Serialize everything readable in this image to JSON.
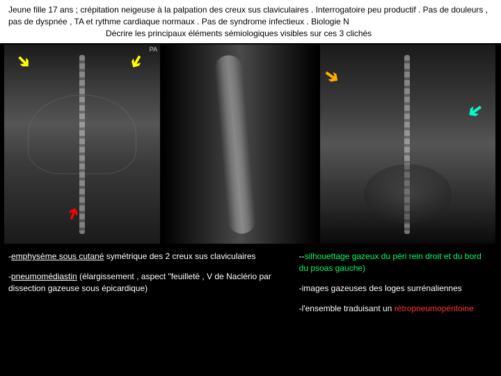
{
  "header": {
    "line1": "Jeune fille 17 ans ; crépitation neigeuse à la palpation des creux sus claviculaires . Interrogatoire peu productif . Pas de douleurs , pas de dyspnée , TA et rythme cardiaque normaux . Pas de syndrome infectieux . Biologie N",
    "line2": "Décrire les principaux éléments sémiologiques visibles sur ces 3 clichés"
  },
  "pa_label": "PA",
  "findings": {
    "left1_prefix": "-",
    "left1_underlined": "emphysème sous cutané",
    "left1_rest": " symétrique des 2 creux sus claviculaires",
    "left2_prefix": "-",
    "left2_underlined": "pneumomédiastin",
    "left2_rest": " (élargissement , aspect \"feuilleté , V de Naclério par dissection gazeuse sous épicardique)",
    "right1_prefix": "--",
    "right1_green": "silhouettage gazeux du péri rein droit et du bord du psoas gauche)",
    "right2": "-images gazeuses des loges surrénaliennes",
    "right3_prefix": "-l'ensemble traduisant un ",
    "right3_red": "rétropneumopéritoine"
  }
}
